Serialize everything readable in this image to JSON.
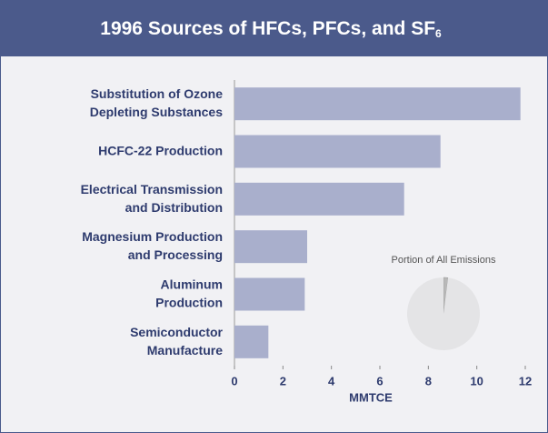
{
  "chart_data": {
    "type": "barh",
    "title": "1996 Sources of HFCs, PFCs, and SF",
    "title_subscript": "6",
    "categories": [
      "Substitution of Ozone\nDepleting Substances",
      "HCFC-22 Production",
      "Electrical Transmission\nand Distribution",
      "Magnesium Production\nand Processing",
      "Aluminum\nProduction",
      "Semiconductor\nManufacture"
    ],
    "values": [
      11.8,
      8.5,
      7.0,
      3.0,
      2.9,
      1.4
    ],
    "color": "#a9afcc",
    "xlabel": "MMTCE",
    "xlim": [
      0,
      12
    ],
    "xticks": [
      0,
      2,
      4,
      6,
      8,
      10,
      12
    ],
    "inset": {
      "type": "pie",
      "title": "Portion of All Emissions",
      "values": [
        2,
        98
      ],
      "colors": [
        "#b8b8b8",
        "#e4e4e6"
      ]
    }
  }
}
